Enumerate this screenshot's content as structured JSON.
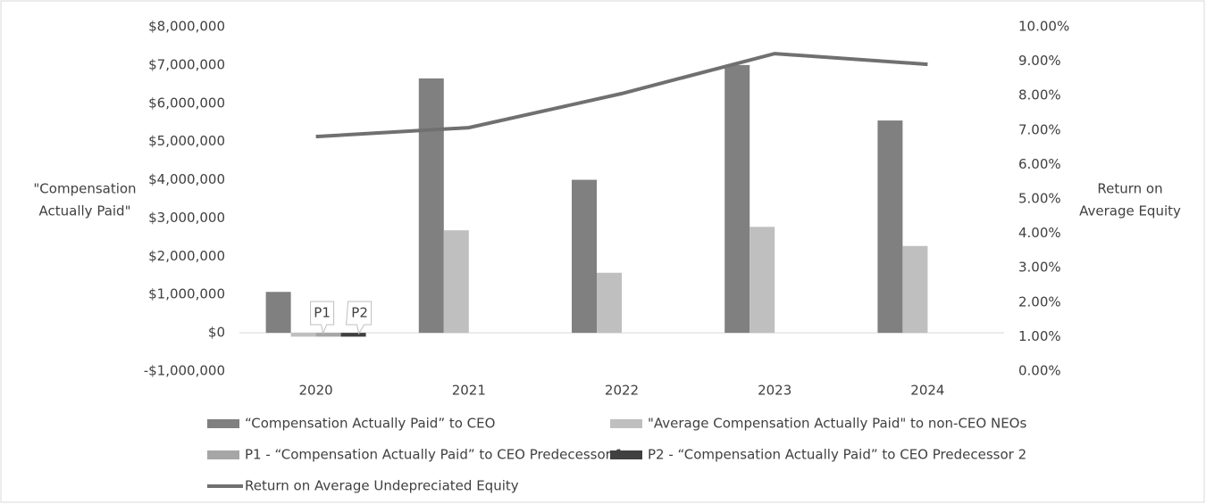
{
  "chart_data": {
    "type": "bar",
    "categories": [
      "2020",
      "2021",
      "2022",
      "2023",
      "2024"
    ],
    "series": [
      {
        "name": "“Compensation Actually Paid” to CEO",
        "color": "#808080",
        "values": [
          1070000,
          6650000,
          4000000,
          7000000,
          5550000
        ]
      },
      {
        "name": "\"Average Compensation Actually Paid\" to non-CEO NEOs",
        "color": "#bfbfbf",
        "values": [
          -100000,
          2680000,
          1570000,
          2770000,
          2270000
        ]
      },
      {
        "name": "P1 - “Compensation Actually Paid” to CEO Predecessor 1",
        "color": "#a6a6a6",
        "values": [
          -100000,
          null,
          null,
          null,
          null
        ]
      },
      {
        "name": "P2 - “Compensation Actually Paid” to CEO Predecessor 2",
        "color": "#404040",
        "values": [
          -100000,
          null,
          null,
          null,
          null
        ]
      },
      {
        "name": "Return on Average Undepreciated Equity",
        "color": "#707070",
        "type": "line",
        "axis": "y2",
        "values": [
          6.81,
          7.07,
          8.06,
          9.22,
          8.91
        ]
      }
    ],
    "annotations": [
      "P1",
      "P2"
    ],
    "y_label": [
      "\"Compensation",
      "Actually Paid\""
    ],
    "y2_label": [
      "Return on",
      "Average Equity"
    ],
    "ylim": [
      -1000000,
      8000000
    ],
    "yticks": [
      {
        "value": 8000000,
        "label": "$8,000,000"
      },
      {
        "value": 7000000,
        "label": "$7,000,000"
      },
      {
        "value": 6000000,
        "label": "$6,000,000"
      },
      {
        "value": 5000000,
        "label": "$5,000,000"
      },
      {
        "value": 4000000,
        "label": "$4,000,000"
      },
      {
        "value": 3000000,
        "label": "$3,000,000"
      },
      {
        "value": 2000000,
        "label": "$2,000,000"
      },
      {
        "value": 1000000,
        "label": "$1,000,000"
      },
      {
        "value": 0,
        "label": "$0"
      },
      {
        "value": -1000000,
        "label": "-$1,000,000"
      }
    ],
    "y2lim": [
      0,
      10
    ],
    "y2ticks": [
      {
        "value": 10,
        "label": "10.00%"
      },
      {
        "value": 9,
        "label": "9.00%"
      },
      {
        "value": 8,
        "label": "8.00%"
      },
      {
        "value": 7,
        "label": "7.00%"
      },
      {
        "value": 6,
        "label": "6.00%"
      },
      {
        "value": 5,
        "label": "5.00%"
      },
      {
        "value": 4,
        "label": "4.00%"
      },
      {
        "value": 3,
        "label": "3.00%"
      },
      {
        "value": 2,
        "label": "2.00%"
      },
      {
        "value": 1,
        "label": "1.00%"
      },
      {
        "value": 0,
        "label": "0.00%"
      }
    ],
    "grid": false
  }
}
